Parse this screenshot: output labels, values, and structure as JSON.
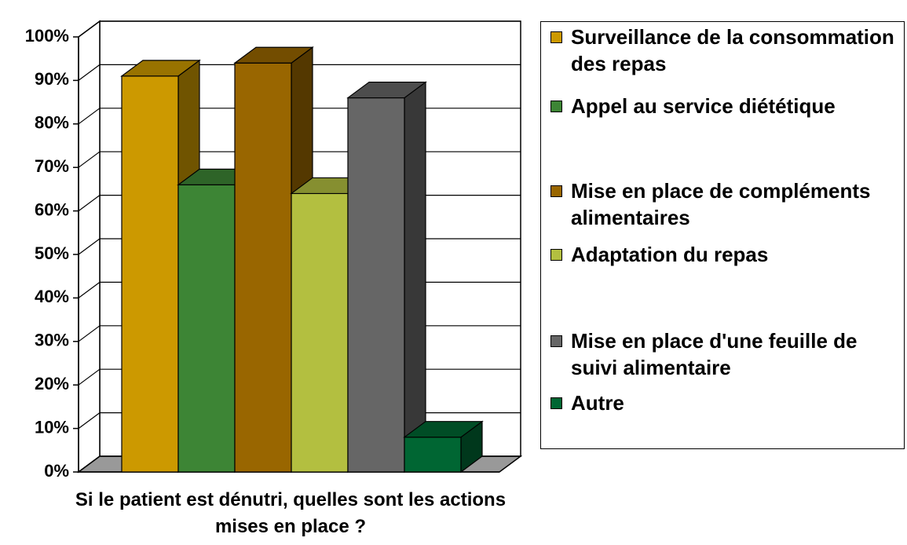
{
  "chart_data": {
    "type": "bar",
    "x_label": "Si le patient est dénutri, quelles sont les actions mises en place ?",
    "categories": [
      null
    ],
    "series": [
      {
        "name": "Surveillance de la consommation des repas",
        "color": "#cc9900",
        "values": [
          91
        ]
      },
      {
        "name": "Appel au service diététique",
        "color": "#3d8535",
        "values": [
          66
        ]
      },
      {
        "name": "Mise en place de compléments alimentaires",
        "color": "#996600",
        "values": [
          94
        ]
      },
      {
        "name": "Adaptation du repas",
        "color": "#b3bf40",
        "values": [
          64
        ]
      },
      {
        "name": "Mise en place d'une feuille de suivi alimentaire",
        "color": "#666666",
        "values": [
          86
        ]
      },
      {
        "name": "Autre",
        "color": "#006633",
        "values": [
          8
        ]
      }
    ],
    "ylim": [
      0,
      100
    ],
    "yticks": [
      {
        "value": 0,
        "label": "0%"
      },
      {
        "value": 10,
        "label": "10%"
      },
      {
        "value": 20,
        "label": "20%"
      },
      {
        "value": 30,
        "label": "30%"
      },
      {
        "value": 40,
        "label": "40%"
      },
      {
        "value": 50,
        "label": "50%"
      },
      {
        "value": 60,
        "label": "60%"
      },
      {
        "value": 70,
        "label": "70%"
      },
      {
        "value": 80,
        "label": "80%"
      },
      {
        "value": 90,
        "label": "90%"
      },
      {
        "value": 100,
        "label": "100%"
      }
    ],
    "grid": true,
    "legend": "right",
    "three_d": true
  }
}
